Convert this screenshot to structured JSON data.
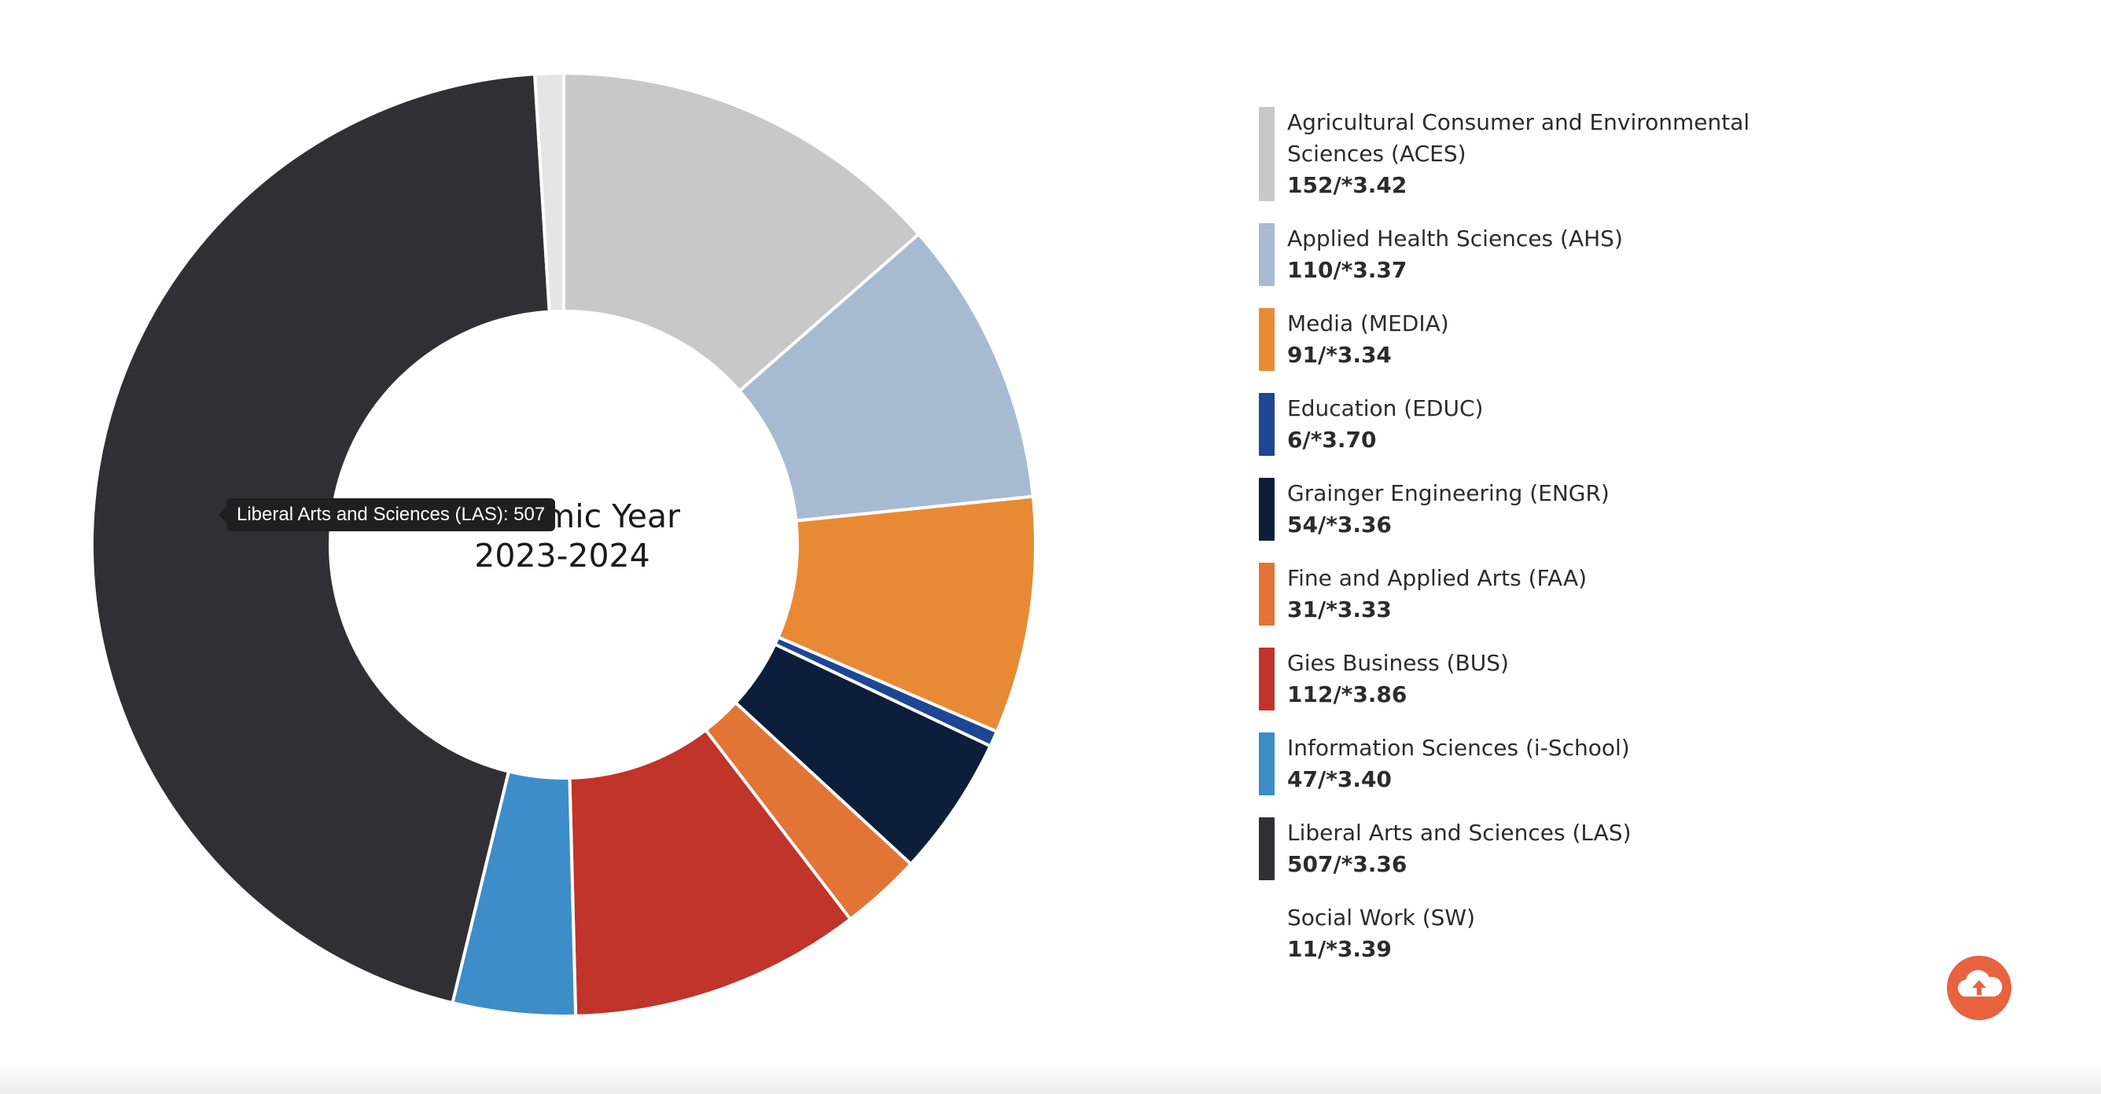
{
  "chart_data": {
    "type": "pie",
    "variant": "doughnut",
    "title_lines": [
      "Academic Year",
      "2023-2024"
    ],
    "unit_note": "count/*GPA",
    "slices": [
      {
        "label": "Agricultural Consumer and Environmental Sciences (ACES)",
        "value": 152,
        "gpa": "3.42",
        "display": "152/*3.42",
        "color": "#c8c8c8"
      },
      {
        "label": "Applied Health Sciences (AHS)",
        "value": 110,
        "gpa": "3.37",
        "display": "110/*3.37",
        "color": "#a6bbd1"
      },
      {
        "label": "Media (MEDIA)",
        "value": 91,
        "gpa": "3.34",
        "display": "91/*3.34",
        "color": "#e88a35"
      },
      {
        "label": "Education (EDUC)",
        "value": 6,
        "gpa": "3.70",
        "display": "6/*3.70",
        "color": "#1f4694"
      },
      {
        "label": "Grainger Engineering (ENGR)",
        "value": 54,
        "gpa": "3.36",
        "display": "54/*3.36",
        "color": "#0d1e3a"
      },
      {
        "label": "Fine and Applied Arts (FAA)",
        "value": 31,
        "gpa": "3.33",
        "display": "31/*3.33",
        "color": "#e27435"
      },
      {
        "label": "Gies Business (BUS)",
        "value": 112,
        "gpa": "3.86",
        "display": "112/*3.86",
        "color": "#c0342a"
      },
      {
        "label": "Information Sciences (i-School)",
        "value": 47,
        "gpa": "3.40",
        "display": "47/*3.40",
        "color": "#3d8dc8"
      },
      {
        "label": "Liberal Arts and Sciences (LAS)",
        "value": 507,
        "gpa": "3.36",
        "display": "507/*3.36",
        "color": "#303034"
      },
      {
        "label": "Social Work (SW)",
        "value": 11,
        "gpa": "3.39",
        "display": "11/*3.39",
        "color": "#e5e5e5"
      }
    ],
    "legend_position": "right",
    "tooltip": "Liberal Arts and Sciences (LAS): 507"
  },
  "colors": {
    "slice_border": "#ffffff",
    "scroll_button": "#e8623f"
  },
  "icons": {
    "scroll_top": "cloud-upload-icon"
  }
}
